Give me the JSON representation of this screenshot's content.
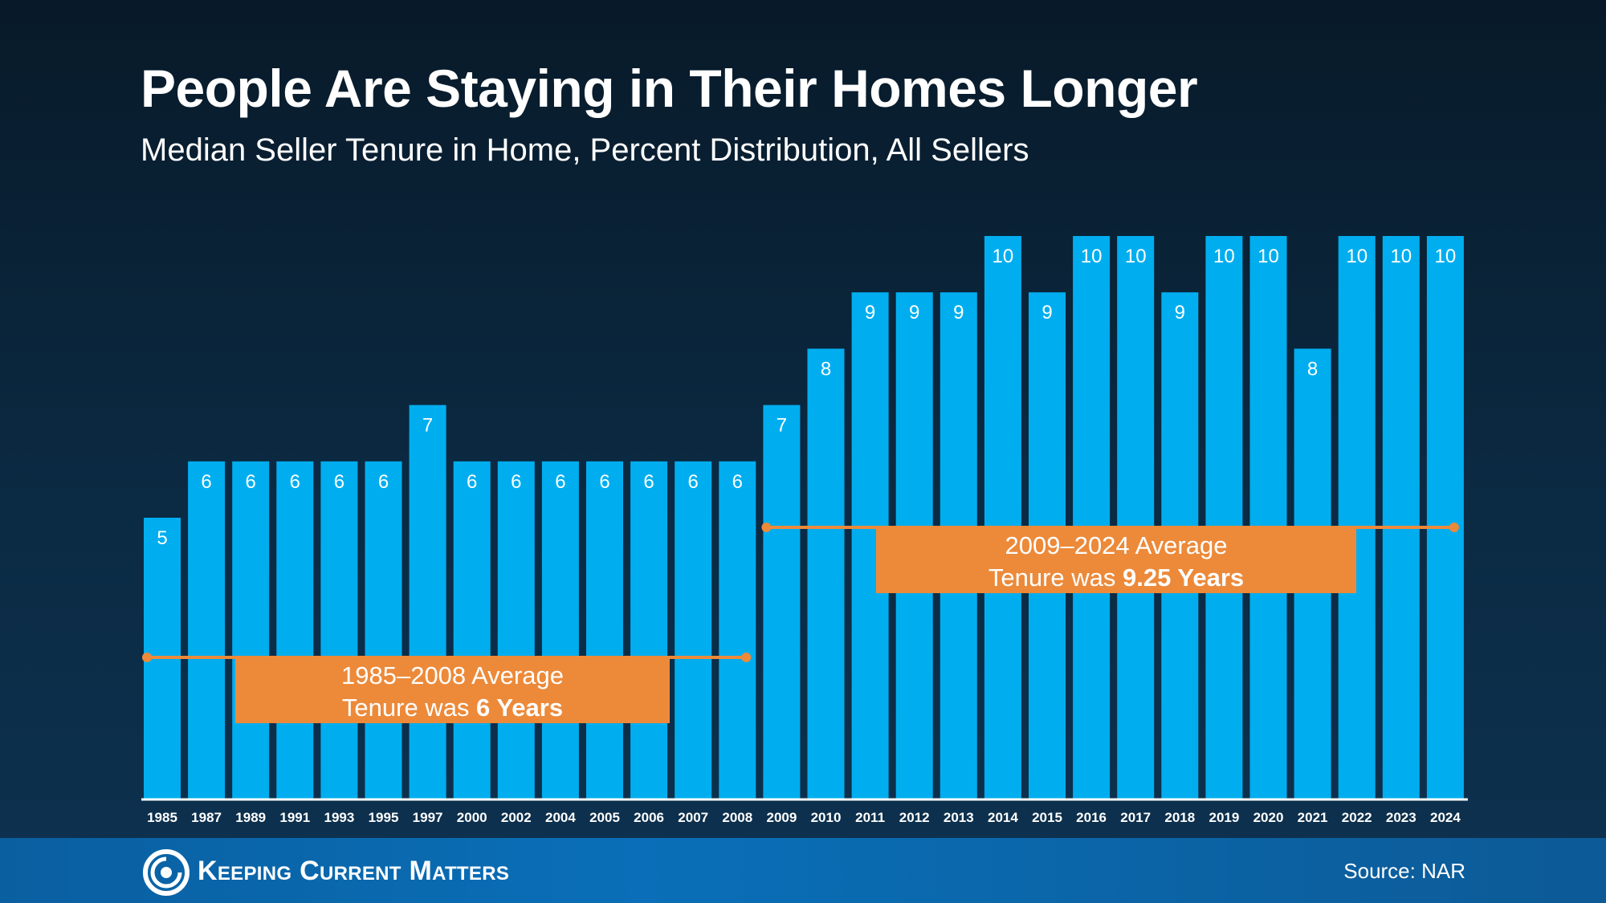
{
  "title": "People Are Staying in Their Homes Longer",
  "subtitle": "Median Seller Tenure in Home, Percent Distribution, All Sellers",
  "colors": {
    "bar": "#00aeef",
    "annotation": "#ec8a3a",
    "axis": "#ffffff"
  },
  "chart_data": {
    "type": "bar",
    "title": "People Are Staying in Their Homes Longer",
    "subtitle": "Median Seller Tenure in Home, Percent Distribution, All Sellers",
    "xlabel": "",
    "ylabel": "",
    "ylim": [
      0,
      10.5
    ],
    "grid": false,
    "categories": [
      "1985",
      "1987",
      "1989",
      "1991",
      "1993",
      "1995",
      "1997",
      "2000",
      "2002",
      "2004",
      "2005",
      "2006",
      "2007",
      "2008",
      "2009",
      "2010",
      "2011",
      "2012",
      "2013",
      "2014",
      "2015",
      "2016",
      "2017",
      "2018",
      "2019",
      "2020",
      "2021",
      "2022",
      "2023",
      "2024"
    ],
    "values": [
      5,
      6,
      6,
      6,
      6,
      6,
      7,
      6,
      6,
      6,
      6,
      6,
      6,
      6,
      7,
      8,
      9,
      9,
      9,
      10,
      9,
      10,
      10,
      9,
      10,
      10,
      8,
      10,
      10,
      10
    ],
    "annotations": [
      {
        "from": "1985",
        "to": "2008",
        "value": 6,
        "line1": "1985–2008 Average",
        "line2_prefix": "Tenure was ",
        "line2_bold": "6 Years"
      },
      {
        "from": "2009",
        "to": "2024",
        "value": 9.25,
        "line1": "2009–2024 Average",
        "line2_prefix": "Tenure was ",
        "line2_bold": "9.25 Years"
      }
    ]
  },
  "footer": {
    "brand": "Keeping Current Matters",
    "source": "Source: NAR",
    "logo_icon": "kcm-swirl-icon"
  }
}
